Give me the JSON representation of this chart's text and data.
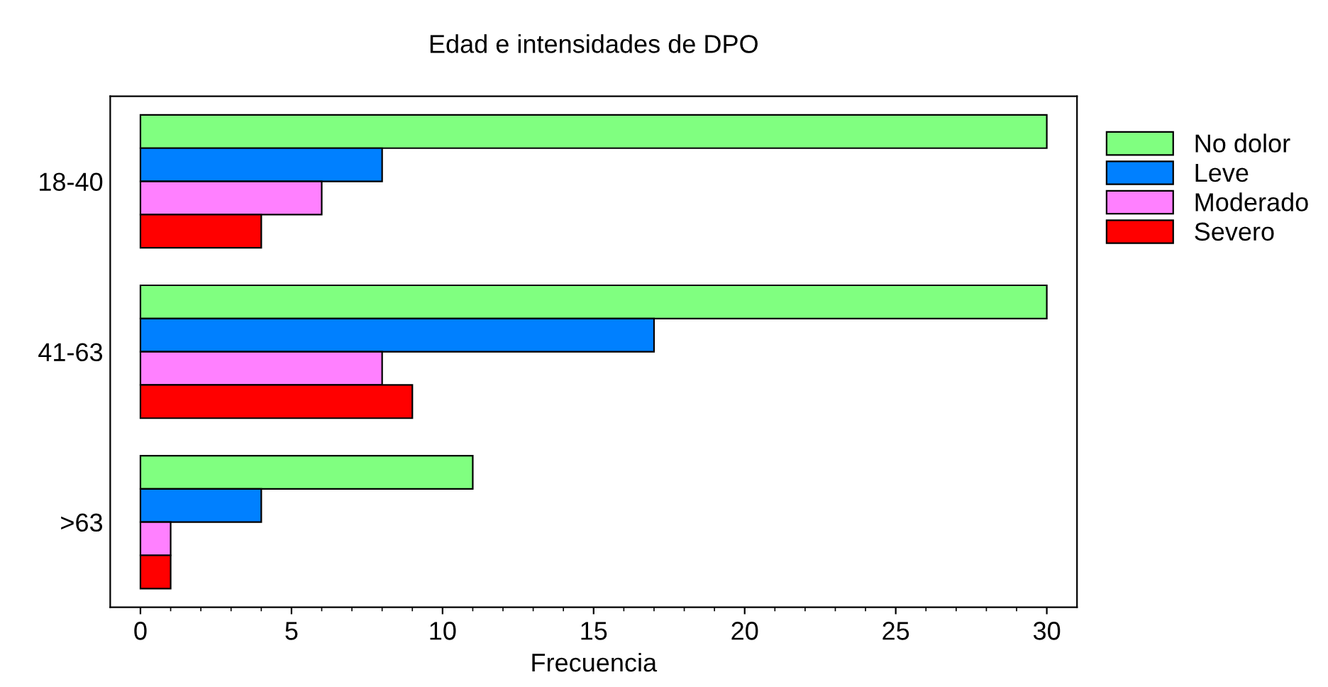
{
  "chart_data": {
    "type": "bar",
    "orientation": "horizontal",
    "title": "Edad e intensidades de DPO",
    "xlabel": "Frecuencia",
    "categories": [
      "18-40",
      "41-63",
      ">63"
    ],
    "series": [
      {
        "name": "No dolor",
        "color": "#80ff80",
        "values": [
          30,
          30,
          11
        ]
      },
      {
        "name": "Leve",
        "color": "#0080ff",
        "values": [
          8,
          17,
          4
        ]
      },
      {
        "name": "Moderado",
        "color": "#ff80ff",
        "values": [
          6,
          8,
          1
        ]
      },
      {
        "name": "Severo",
        "color": "#ff0000",
        "values": [
          4,
          9,
          1
        ]
      }
    ],
    "xlim": [
      -1,
      31
    ],
    "xticks": [
      0,
      5,
      10,
      15,
      20,
      25,
      30
    ],
    "grid": false,
    "legend": "right"
  }
}
